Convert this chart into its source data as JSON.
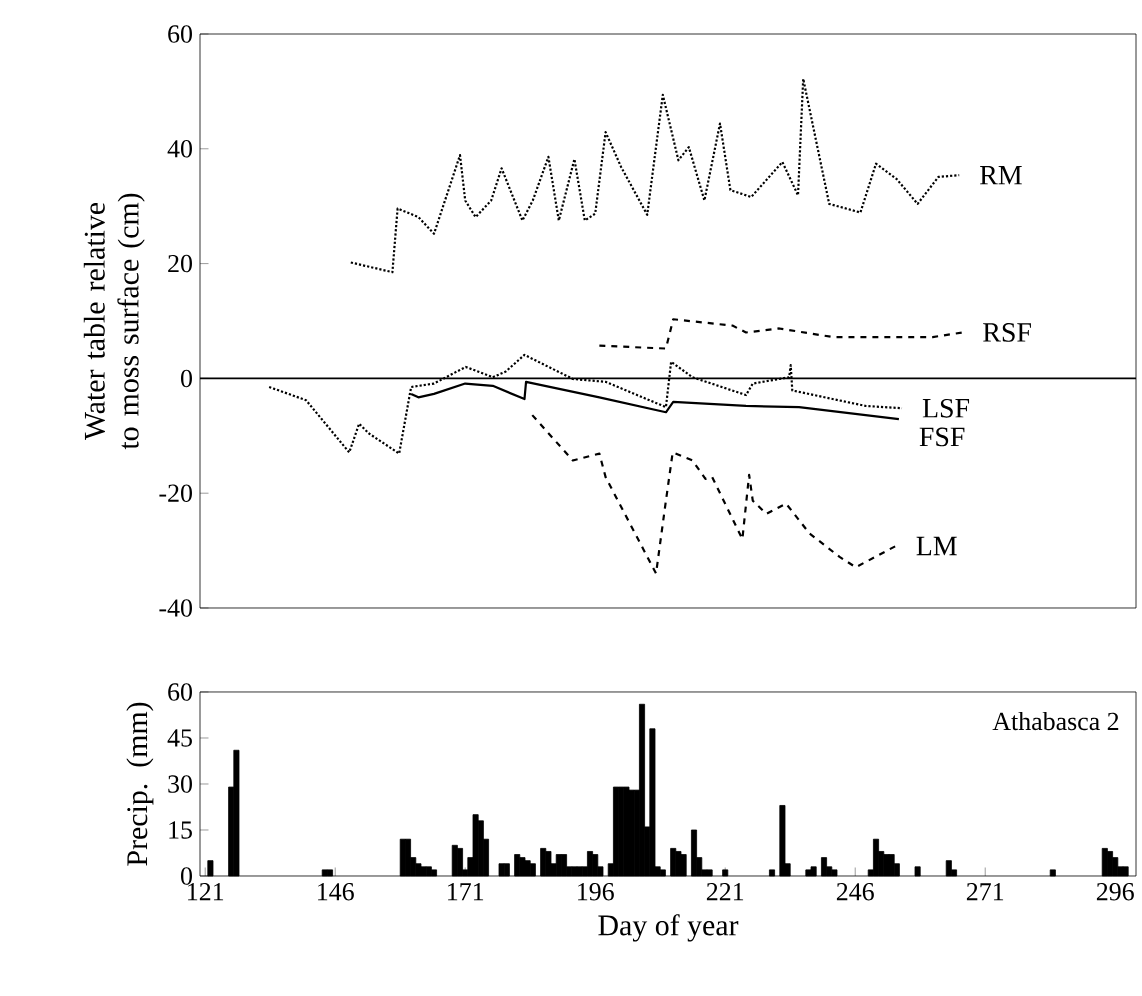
{
  "chart_data": [
    {
      "type": "line",
      "ylabel": "Water table relative to moss surface (cm)",
      "xlim": [
        120,
        300
      ],
      "ylim": [
        -40,
        60
      ],
      "yticks": [
        -40,
        -20,
        0,
        20,
        40,
        60
      ],
      "tick_labels": "y",
      "grid": false,
      "ref_lines": [
        {
          "axis": "y",
          "value": 0,
          "color": "#000000",
          "line_style": "solid"
        }
      ],
      "series": [
        {
          "name": "RM",
          "color": "#000000",
          "line_style": "dotted",
          "x": [
            149,
            157,
            158,
            162,
            165,
            170,
            171,
            173,
            176,
            178,
            182,
            184,
            187,
            189,
            192,
            194,
            196,
            198,
            201,
            206,
            209,
            212,
            214,
            217,
            220,
            222,
            226,
            232,
            235,
            236,
            241,
            247,
            250,
            254,
            258,
            262,
            266
          ],
          "values": [
            20.2,
            18.5,
            29.6,
            28.1,
            25.2,
            38.9,
            31,
            28.1,
            31,
            36.6,
            27.5,
            31,
            38.6,
            27.5,
            38.2,
            27.5,
            28.7,
            42.9,
            36.8,
            28.5,
            49.4,
            38,
            40.3,
            31,
            44.4,
            32.8,
            31.6,
            37.7,
            31.9,
            52.2,
            30.4,
            28.9,
            37.4,
            34.7,
            30.4,
            35.1,
            35.4
          ]
        },
        {
          "name": "RSF",
          "color": "#000000",
          "line_style": "dashed",
          "x": [
            196.8,
            209.6,
            211,
            222.4,
            225,
            231.4,
            241.7,
            260.9,
            266.6
          ],
          "values": [
            5.7,
            5.2,
            10.3,
            9.2,
            8,
            8.7,
            7.2,
            7.2,
            8
          ]
        },
        {
          "name": "LSF",
          "color": "#000000",
          "line_style": "dotted",
          "x": [
            133.3,
            140.4,
            148.7,
            150.6,
            152.5,
            158.3,
            160.6,
            165,
            171.1,
            176.3,
            178.8,
            182.4,
            191.7,
            198,
            209.6,
            210.6,
            214.7,
            225,
            226.3,
            233.3,
            233.6,
            233.9,
            248,
            255
          ],
          "values": [
            -1.5,
            -3.8,
            -12.9,
            -7.9,
            -9.6,
            -13.1,
            -1.5,
            -0.9,
            2,
            0.2,
            1.2,
            4.1,
            -0.1,
            -0.6,
            -5,
            2.9,
            0.2,
            -2.9,
            -0.9,
            0.2,
            2.3,
            -2.1,
            -4.8,
            -5.2
          ]
        },
        {
          "name": "FSF",
          "color": "#000000",
          "line_style": "solid",
          "x": [
            160.6,
            162,
            165,
            171,
            176.3,
            182.4,
            182.7,
            196.8,
            209.6,
            211,
            225,
            235.2,
            254.4
          ],
          "values": [
            -2.7,
            -3.3,
            -2.7,
            -0.9,
            -1.3,
            -3.6,
            -0.6,
            -3.3,
            -5.9,
            -4.1,
            -4.8,
            -5,
            -7.1
          ]
        },
        {
          "name": "LM",
          "color": "#000000",
          "line_style": "dashed",
          "x": [
            183.9,
            191.7,
            196.8,
            198,
            207.7,
            209.6,
            210.9,
            214.7,
            217.2,
            218.5,
            224.3,
            225.6,
            226.3,
            228.9,
            232.7,
            237.2,
            243,
            246.1,
            253.8
          ],
          "values": [
            -6.4,
            -14.3,
            -13.1,
            -17.2,
            -34,
            -21.3,
            -12.9,
            -14.3,
            -17.5,
            -17.2,
            -28,
            -16.8,
            -21.3,
            -23.6,
            -21.8,
            -27,
            -31.1,
            -32.9,
            -29.2
          ]
        }
      ]
    },
    {
      "type": "bar",
      "xlabel": "Day of year",
      "ylabel": "Precip. (mm)",
      "annotations": [
        "Athabasca 2"
      ],
      "color": "#000000",
      "xlim": [
        120,
        300
      ],
      "xticks": [
        121,
        146,
        171,
        196,
        221,
        246,
        271,
        296
      ],
      "ylim": [
        0,
        60
      ],
      "yticks": [
        0,
        15,
        30,
        45,
        60
      ],
      "grid": false,
      "x": [
        122,
        126,
        127,
        144,
        145,
        159,
        160,
        161,
        162,
        163,
        164,
        165,
        169,
        170,
        171,
        172,
        173,
        174,
        175,
        178,
        179,
        181,
        182,
        183,
        184,
        186,
        187,
        188,
        189,
        190,
        191,
        192,
        193,
        194,
        195,
        196,
        197,
        199,
        200,
        201,
        202,
        203,
        204,
        205,
        206,
        207,
        208,
        209,
        211,
        212,
        213,
        215,
        216,
        217,
        218,
        221,
        230,
        232,
        233,
        237,
        238,
        240,
        241,
        242,
        249,
        250,
        251,
        252,
        253,
        254,
        258,
        264,
        265,
        284,
        294,
        295,
        296,
        297,
        298
      ],
      "values": [
        5,
        29,
        41,
        2,
        2,
        12,
        12,
        6,
        4,
        3,
        3,
        2,
        10,
        9,
        2,
        6,
        20,
        18,
        12,
        4,
        4,
        7,
        6,
        5,
        4,
        9,
        8,
        4,
        7,
        7,
        3,
        3,
        3,
        3,
        8,
        7,
        3,
        4,
        29,
        29,
        29,
        28,
        28,
        56,
        16,
        48,
        3,
        2,
        9,
        8,
        7,
        15,
        6,
        2,
        2,
        2,
        2,
        23,
        4,
        2,
        3,
        6,
        3,
        2,
        2,
        12,
        8,
        7,
        7,
        4,
        3,
        5,
        2,
        2,
        9,
        8,
        6,
        3,
        3
      ]
    }
  ]
}
